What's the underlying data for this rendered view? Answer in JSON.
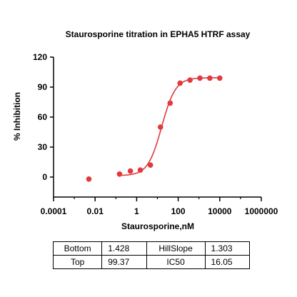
{
  "chart_data": {
    "type": "scatter",
    "title": "Staurosporine titration in EPHA5 HTRF assay",
    "xlabel": "Staurosporine,nM",
    "ylabel": "% Inhibition",
    "x_scale": "log",
    "xlim": [
      0.0001,
      1000000
    ],
    "ylim": [
      -20,
      120
    ],
    "x_ticks": [
      0.0001,
      0.01,
      1,
      100,
      10000,
      1000000
    ],
    "x_tick_labels": [
      "0.0001",
      "0.01",
      "1",
      "100",
      "10000",
      "1000000"
    ],
    "y_ticks": [
      0,
      30,
      60,
      90,
      120
    ],
    "y_tick_labels": [
      "0",
      "30",
      "60",
      "90",
      "120"
    ],
    "grid": false,
    "color": "#e0393e",
    "series": [
      {
        "points": [
          {
            "x": 0.005,
            "y": -2
          },
          {
            "x": 0.15,
            "y": 3
          },
          {
            "x": 0.5,
            "y": 6
          },
          {
            "x": 1.5,
            "y": 7
          },
          {
            "x": 4.6,
            "y": 12
          },
          {
            "x": 14,
            "y": 50
          },
          {
            "x": 41,
            "y": 74
          },
          {
            "x": 123,
            "y": 94
          },
          {
            "x": 370,
            "y": 97
          },
          {
            "x": 1111,
            "y": 99
          },
          {
            "x": 3333,
            "y": 99
          },
          {
            "x": 10000,
            "y": 99
          }
        ],
        "fit": {
          "bottom": 1.428,
          "top": 99.37,
          "ic50": 16.05,
          "hill_slope": 1.303,
          "x_range": [
            0.15,
            10000
          ]
        }
      }
    ]
  },
  "table": {
    "rows": [
      {
        "label1": "Bottom",
        "value1": "1.428",
        "label2": "HillSlope",
        "value2": "1.303"
      },
      {
        "label1": "Top",
        "value1": "99.37",
        "label2": "IC50",
        "value2": "16.05"
      }
    ]
  }
}
